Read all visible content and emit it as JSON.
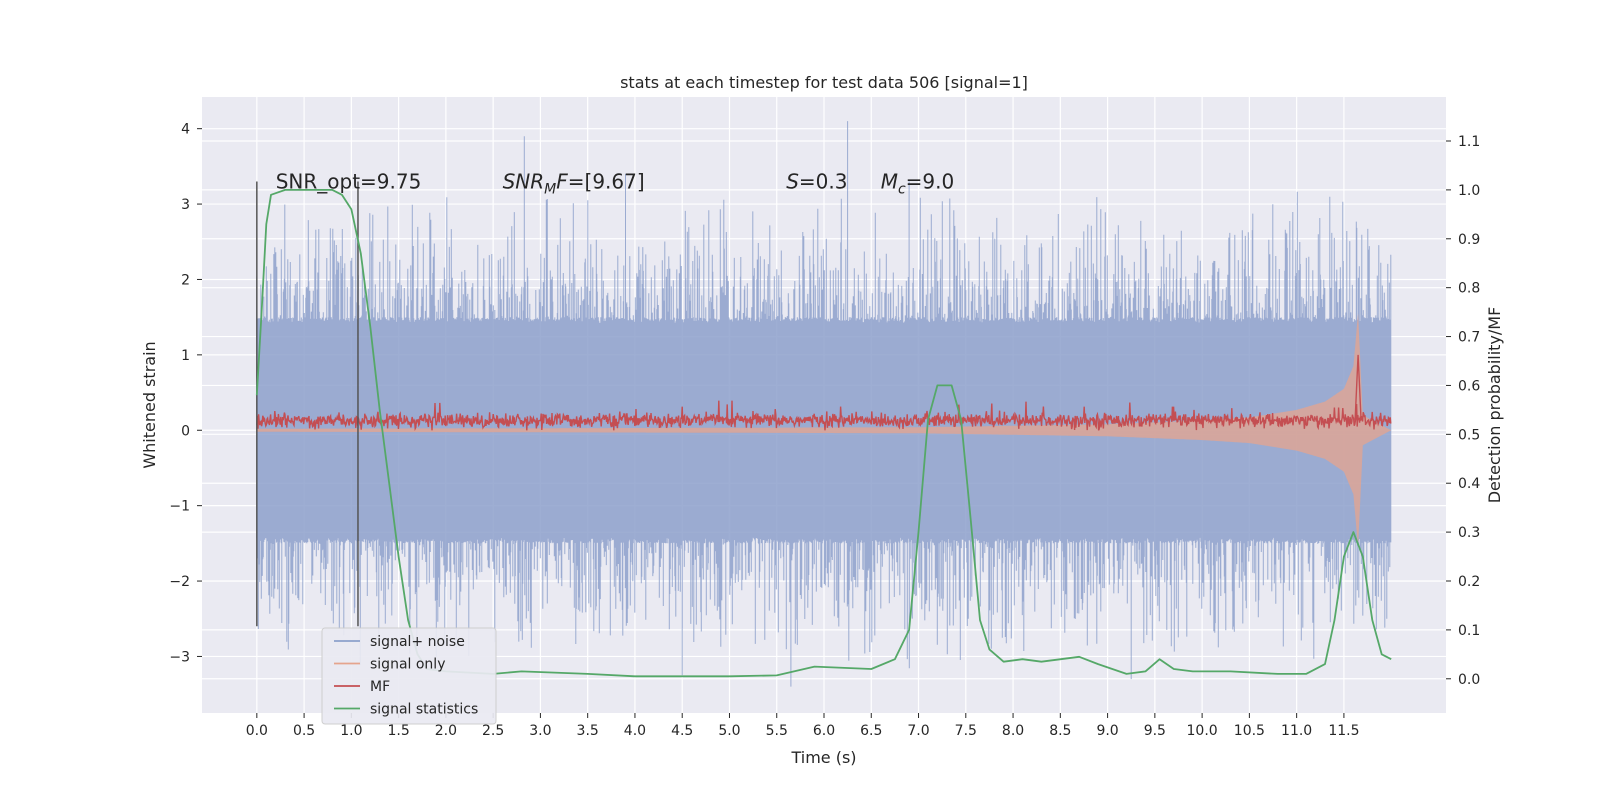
{
  "chart_data": {
    "type": "line",
    "title": "stats at each timestep for test data 506 [signal=1]",
    "xlabel": "Time (s)",
    "ylabel_left": "Whitened strain",
    "ylabel_right": "Detection probability/MF",
    "xlim": [
      -0.58,
      12.58
    ],
    "ylim_left": [
      -3.75,
      4.42
    ],
    "ylim_right": [
      -0.07,
      1.19
    ],
    "x_ticks": [
      0.0,
      0.5,
      1.0,
      1.5,
      2.0,
      2.5,
      3.0,
      3.5,
      4.0,
      4.5,
      5.0,
      5.5,
      6.0,
      6.5,
      7.0,
      7.5,
      8.0,
      8.5,
      9.0,
      9.5,
      10.0,
      10.5,
      11.0,
      11.5
    ],
    "x_tick_labels": [
      "0.0",
      "0.5",
      "1.0",
      "1.5",
      "2.0",
      "2.5",
      "3.0",
      "3.5",
      "4.0",
      "4.5",
      "5.0",
      "5.5",
      "6.0",
      "6.5",
      "7.0",
      "7.5",
      "8.0",
      "8.5",
      "9.0",
      "9.5",
      "10.0",
      "10.5",
      "11.0",
      "11.5"
    ],
    "y_left_ticks": [
      -3,
      -2,
      -1,
      0,
      1,
      2,
      3,
      4
    ],
    "y_left_tick_labels": [
      "−3",
      "−2",
      "−1",
      "0",
      "1",
      "2",
      "3",
      "4"
    ],
    "y_right_ticks": [
      0.0,
      0.1,
      0.2,
      0.3,
      0.4,
      0.5,
      0.6,
      0.7,
      0.8,
      0.9,
      1.0,
      1.1
    ],
    "y_right_tick_labels": [
      "0.0",
      "0.1",
      "0.2",
      "0.3",
      "0.4",
      "0.5",
      "0.6",
      "0.7",
      "0.8",
      "0.9",
      "1.0",
      "1.1"
    ],
    "grid": true,
    "legend_position": "lower-left",
    "annotations": [
      {
        "x": 0.2,
        "y": 3.3,
        "text": "SNR_opt=9.75"
      },
      {
        "x": 2.6,
        "y": 3.3,
        "text": "SNR_MF=[9.67]"
      },
      {
        "x": 5.6,
        "y": 3.3,
        "text": "S=0.3"
      },
      {
        "x": 6.6,
        "y": 3.3,
        "text": "M_c=9.0"
      }
    ],
    "vertical_markers": {
      "x": [
        0.0,
        1.07
      ],
      "ymin": -2.6,
      "ymax": 3.3,
      "color": "#555555"
    },
    "series": [
      {
        "name": "signal+ noise",
        "color": "#8da0cb",
        "axis": "left",
        "x_range": [
          0.0,
          12.0
        ],
        "typical_amplitude": 1.5,
        "max": 4.1,
        "min": -3.4,
        "peaks": [
          {
            "x": 2.83,
            "y": 3.9
          },
          {
            "x": 6.25,
            "y": 4.1
          },
          {
            "x": 6.9,
            "y": 3.3
          },
          {
            "x": 3.9,
            "y": 3.4
          },
          {
            "x": 5.65,
            "y": -3.4
          },
          {
            "x": 9.25,
            "y": -3.3
          },
          {
            "x": 4.5,
            "y": -3.25
          }
        ]
      },
      {
        "name": "signal only",
        "color": "#e5a48d",
        "axis": "left",
        "envelope": [
          {
            "x": 0.0,
            "y": 0.02
          },
          {
            "x": 4.0,
            "y": 0.03
          },
          {
            "x": 7.0,
            "y": 0.04
          },
          {
            "x": 8.0,
            "y": 0.06
          },
          {
            "x": 9.0,
            "y": 0.08
          },
          {
            "x": 10.0,
            "y": 0.13
          },
          {
            "x": 10.5,
            "y": 0.17
          },
          {
            "x": 11.0,
            "y": 0.27
          },
          {
            "x": 11.3,
            "y": 0.38
          },
          {
            "x": 11.5,
            "y": 0.55
          },
          {
            "x": 11.6,
            "y": 0.85
          },
          {
            "x": 11.65,
            "y": 1.55
          },
          {
            "x": 11.7,
            "y": 0.2
          },
          {
            "x": 12.0,
            "y": 0.0
          }
        ]
      },
      {
        "name": "MF",
        "color": "#c44e52",
        "axis": "left",
        "x_range": [
          0.0,
          12.0
        ],
        "baseline": 0.13,
        "noise_amplitude": 0.08,
        "spikes": [
          {
            "x": 11.65,
            "y": 1.0
          }
        ]
      },
      {
        "name": "signal statistics",
        "color": "#55a868",
        "axis": "right",
        "points": [
          {
            "x": 0.0,
            "y": 0.58
          },
          {
            "x": 0.05,
            "y": 0.75
          },
          {
            "x": 0.1,
            "y": 0.93
          },
          {
            "x": 0.15,
            "y": 0.99
          },
          {
            "x": 0.3,
            "y": 1.0
          },
          {
            "x": 0.8,
            "y": 1.0
          },
          {
            "x": 0.9,
            "y": 0.99
          },
          {
            "x": 1.0,
            "y": 0.96
          },
          {
            "x": 1.1,
            "y": 0.87
          },
          {
            "x": 1.2,
            "y": 0.72
          },
          {
            "x": 1.3,
            "y": 0.55
          },
          {
            "x": 1.4,
            "y": 0.4
          },
          {
            "x": 1.5,
            "y": 0.25
          },
          {
            "x": 1.6,
            "y": 0.12
          },
          {
            "x": 1.7,
            "y": 0.05
          },
          {
            "x": 1.8,
            "y": 0.02
          },
          {
            "x": 2.0,
            "y": 0.015
          },
          {
            "x": 2.5,
            "y": 0.01
          },
          {
            "x": 2.8,
            "y": 0.015
          },
          {
            "x": 3.5,
            "y": 0.01
          },
          {
            "x": 4.0,
            "y": 0.005
          },
          {
            "x": 4.5,
            "y": 0.005
          },
          {
            "x": 5.0,
            "y": 0.005
          },
          {
            "x": 5.5,
            "y": 0.007
          },
          {
            "x": 5.9,
            "y": 0.025
          },
          {
            "x": 6.5,
            "y": 0.02
          },
          {
            "x": 6.75,
            "y": 0.04
          },
          {
            "x": 6.9,
            "y": 0.1
          },
          {
            "x": 7.0,
            "y": 0.3
          },
          {
            "x": 7.1,
            "y": 0.53
          },
          {
            "x": 7.2,
            "y": 0.6
          },
          {
            "x": 7.35,
            "y": 0.6
          },
          {
            "x": 7.45,
            "y": 0.53
          },
          {
            "x": 7.55,
            "y": 0.33
          },
          {
            "x": 7.65,
            "y": 0.12
          },
          {
            "x": 7.75,
            "y": 0.06
          },
          {
            "x": 7.9,
            "y": 0.035
          },
          {
            "x": 8.1,
            "y": 0.04
          },
          {
            "x": 8.3,
            "y": 0.035
          },
          {
            "x": 8.7,
            "y": 0.045
          },
          {
            "x": 8.9,
            "y": 0.03
          },
          {
            "x": 9.2,
            "y": 0.01
          },
          {
            "x": 9.4,
            "y": 0.015
          },
          {
            "x": 9.55,
            "y": 0.04
          },
          {
            "x": 9.7,
            "y": 0.02
          },
          {
            "x": 9.9,
            "y": 0.015
          },
          {
            "x": 10.3,
            "y": 0.015
          },
          {
            "x": 10.8,
            "y": 0.01
          },
          {
            "x": 11.1,
            "y": 0.01
          },
          {
            "x": 11.3,
            "y": 0.03
          },
          {
            "x": 11.4,
            "y": 0.12
          },
          {
            "x": 11.5,
            "y": 0.25
          },
          {
            "x": 11.6,
            "y": 0.3
          },
          {
            "x": 11.7,
            "y": 0.25
          },
          {
            "x": 11.8,
            "y": 0.12
          },
          {
            "x": 11.9,
            "y": 0.05
          },
          {
            "x": 12.0,
            "y": 0.04
          }
        ]
      }
    ]
  }
}
